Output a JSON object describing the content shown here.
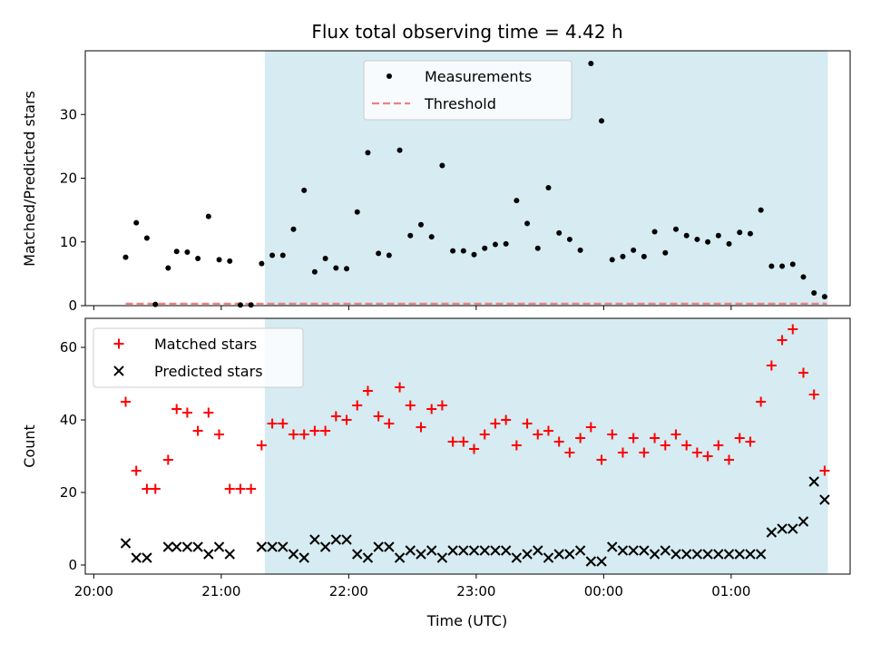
{
  "chart_data": {
    "type": "scatter",
    "title": "Flux total observing time = 4.42 h",
    "xlabel": "Time (UTC)",
    "x_tick_labels": [
      "20:00",
      "21:00",
      "22:00",
      "23:00",
      "00:00",
      "01:00"
    ],
    "shaded_region": {
      "start_min": 80.5,
      "end_min": 345.5,
      "color": "#add8e6"
    },
    "panels": [
      {
        "id": "top",
        "ylabel": "Matched/Predicted stars",
        "ylim": [
          0,
          40
        ],
        "yticks": [
          0,
          10,
          20,
          30
        ],
        "legend": [
          {
            "name": "Measurements",
            "marker": "dot",
            "color": "#000000"
          },
          {
            "name": "Threshold",
            "marker": "dashed-line",
            "color": "#f08080"
          }
        ],
        "threshold": {
          "value": 0.3,
          "x_start_min": 15,
          "x_end_min": 345
        },
        "series": [
          {
            "name": "Measurements",
            "marker": "dot",
            "color": "#000000",
            "x_min": [
              15,
              20,
              25,
              29,
              35,
              39,
              44,
              49,
              54,
              59,
              64,
              69,
              74,
              79,
              84,
              89,
              94,
              99,
              104,
              109,
              114,
              119,
              124,
              129,
              134,
              139,
              144,
              149,
              154,
              159,
              164,
              169,
              174,
              179,
              184,
              189,
              194,
              199,
              204,
              209,
              214,
              219,
              224,
              229,
              234,
              239,
              244,
              249,
              254,
              259,
              264,
              269,
              274,
              279,
              284,
              289,
              294,
              299,
              304,
              309,
              314,
              319,
              324,
              329,
              334,
              339,
              344
            ],
            "values": [
              7.6,
              13,
              10.6,
              0.2,
              5.9,
              8.5,
              8.4,
              7.4,
              14,
              7.2,
              7,
              0.1,
              0.1,
              6.6,
              7.9,
              7.9,
              12,
              18.1,
              5.3,
              7.4,
              5.9,
              5.8,
              14.7,
              24,
              8.2,
              7.9,
              24.4,
              11,
              12.7,
              10.8,
              22,
              8.6,
              8.6,
              8,
              9,
              9.6,
              9.7,
              16.5,
              12.9,
              9,
              18.5,
              11.4,
              10.4,
              8.7,
              38,
              29,
              7.2,
              7.7,
              8.7,
              7.7,
              11.6,
              8.3,
              12,
              11,
              10.4,
              10,
              11,
              9.7,
              11.5,
              11.3,
              15,
              6.2,
              6.2,
              6.5,
              4.5,
              2,
              1.4
            ]
          }
        ]
      },
      {
        "id": "bottom",
        "ylabel": "Count",
        "ylim": [
          -2.5,
          68
        ],
        "yticks": [
          0,
          20,
          40,
          60
        ],
        "legend": [
          {
            "name": "Matched stars",
            "marker": "plus",
            "color": "#ff0000"
          },
          {
            "name": "Predicted stars",
            "marker": "x",
            "color": "#000000"
          }
        ],
        "series": [
          {
            "name": "Matched stars",
            "marker": "plus",
            "color": "#ff0000",
            "x_min": [
              15,
              20,
              25,
              29,
              35,
              39,
              44,
              49,
              54,
              59,
              64,
              69,
              74,
              79,
              84,
              89,
              94,
              99,
              104,
              109,
              114,
              119,
              124,
              129,
              134,
              139,
              144,
              149,
              154,
              159,
              164,
              169,
              174,
              179,
              184,
              189,
              194,
              199,
              204,
              209,
              214,
              219,
              224,
              229,
              234,
              239,
              244,
              249,
              254,
              259,
              264,
              269,
              274,
              279,
              284,
              289,
              294,
              299,
              304,
              309,
              314,
              319,
              324,
              329,
              334,
              339,
              344
            ],
            "values": [
              45,
              26,
              21,
              21,
              29,
              43,
              42,
              37,
              42,
              36,
              21,
              21,
              21,
              33,
              39,
              39,
              36,
              36,
              37,
              37,
              41,
              40,
              44,
              48,
              41,
              39,
              49,
              44,
              38,
              43,
              44,
              34,
              34,
              32,
              36,
              39,
              40,
              33,
              39,
              36,
              37,
              34,
              31,
              35,
              38,
              29,
              36,
              31,
              35,
              31,
              35,
              33,
              36,
              33,
              31,
              30,
              33,
              29,
              35,
              34,
              45,
              55,
              62,
              65,
              53,
              47,
              26
            ]
          },
          {
            "name": "Predicted stars",
            "marker": "x",
            "color": "#000000",
            "x_min": [
              15,
              20,
              25,
              35,
              39,
              44,
              49,
              54,
              59,
              64,
              79,
              84,
              89,
              94,
              99,
              104,
              109,
              114,
              119,
              124,
              129,
              134,
              139,
              144,
              149,
              154,
              159,
              164,
              169,
              174,
              179,
              184,
              189,
              194,
              199,
              204,
              209,
              214,
              219,
              224,
              229,
              234,
              239,
              244,
              249,
              254,
              259,
              264,
              269,
              274,
              279,
              284,
              289,
              294,
              299,
              304,
              309,
              314,
              319,
              324,
              329,
              334,
              339,
              344
            ],
            "values": [
              6,
              2,
              2,
              5,
              5,
              5,
              5,
              3,
              5,
              3,
              5,
              5,
              5,
              3,
              2,
              7,
              5,
              7,
              7,
              3,
              2,
              5,
              5,
              2,
              4,
              3,
              4,
              2,
              4,
              4,
              4,
              4,
              4,
              4,
              2,
              3,
              4,
              2,
              3,
              3,
              4,
              1,
              1,
              5,
              4,
              4,
              4,
              3,
              4,
              3,
              3,
              3,
              3,
              3,
              3,
              3,
              3,
              3,
              9,
              10,
              10,
              12,
              23,
              18
            ]
          }
        ]
      }
    ]
  }
}
